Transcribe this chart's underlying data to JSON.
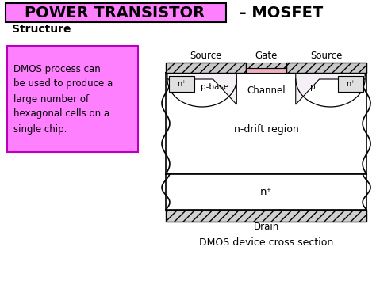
{
  "title_left": "POWER TRANSISTOR",
  "title_right": "– MOSFET",
  "subtitle": "Structure",
  "box_text": "DMOS process can\nbe used to produce a\nlarge number of\nhexagonal cells on a\nsingle chip.",
  "caption": "DMOS device cross section",
  "drain_label": "Drain",
  "gate_label": "Gate",
  "source_label_left": "Source",
  "source_label_right": "Source",
  "channel_label": "Channel",
  "ndrift_label": "n-drift region",
  "nplus_bottom_label": "n⁺",
  "nplus_left_label": "n⁺",
  "nplus_right_label": "n⁺",
  "pbase_label": "p-base",
  "p_label": "p",
  "bg_color": "#ffffff",
  "title_box_color": "#ff80ff",
  "text_box_color": "#ff80ff",
  "gate_oxide_color": "#f0b0c0",
  "metal_hatch_color": "#c8c8c8"
}
